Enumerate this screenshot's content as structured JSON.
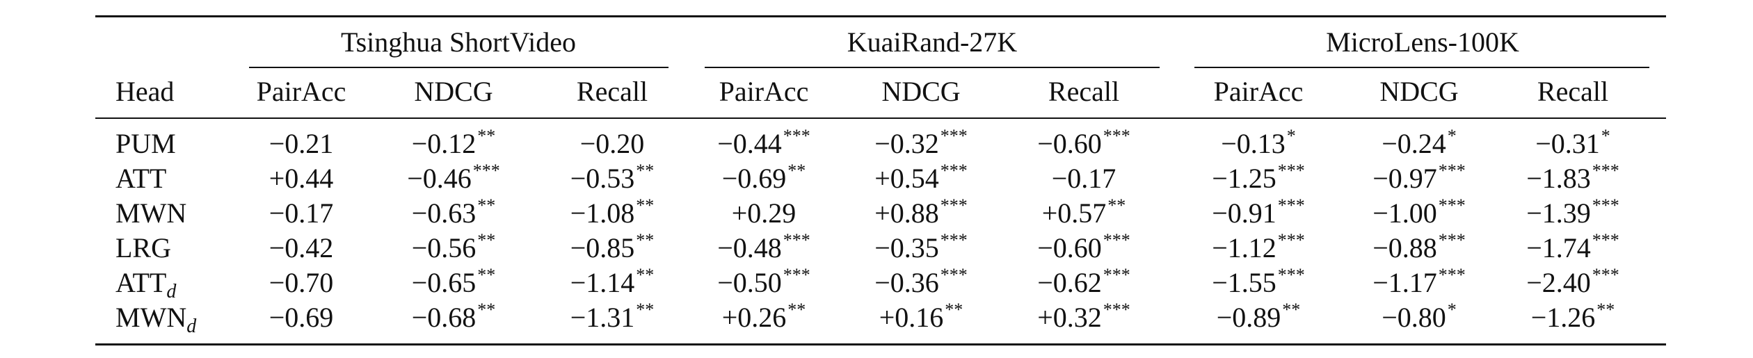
{
  "table": {
    "head_label": "Head",
    "groups": [
      "Tsinghua ShortVideo",
      "KuaiRand-27K",
      "MicroLens-100K"
    ],
    "columns": [
      "PairAcc",
      "NDCG",
      "Recall",
      "PairAcc",
      "NDCG",
      "Recall",
      "PairAcc",
      "NDCG",
      "Recall"
    ],
    "rows": [
      {
        "head": "PUM",
        "cells": [
          "−0.21",
          {
            "text": "−0.12",
            "sup": "**"
          },
          "−0.20",
          {
            "text": "−0.44",
            "sup": "***"
          },
          {
            "text": "−0.32",
            "sup": "***"
          },
          {
            "text": "−0.60",
            "sup": "***"
          },
          {
            "text": "−0.13",
            "sup": "*"
          },
          {
            "text": "−0.24",
            "sup": "*"
          },
          {
            "text": "−0.31",
            "sup": "*"
          }
        ]
      },
      {
        "head": "ATT",
        "cells": [
          "+0.44",
          {
            "text": "−0.46",
            "sup": "***"
          },
          {
            "text": "−0.53",
            "sup": "**"
          },
          {
            "text": "−0.69",
            "sup": "**"
          },
          {
            "text": "+0.54",
            "sup": "***"
          },
          "−0.17",
          {
            "text": "−1.25",
            "sup": "***"
          },
          {
            "text": "−0.97",
            "sup": "***"
          },
          {
            "text": "−1.83",
            "sup": "***"
          }
        ]
      },
      {
        "head": "MWN",
        "cells": [
          "−0.17",
          {
            "text": "−0.63",
            "sup": "**"
          },
          {
            "text": "−1.08",
            "sup": "**"
          },
          "+0.29",
          {
            "text": "+0.88",
            "sup": "***"
          },
          {
            "text": "+0.57",
            "sup": "**"
          },
          {
            "text": "−0.91",
            "sup": "***"
          },
          {
            "text": "−1.00",
            "sup": "***"
          },
          {
            "text": "−1.39",
            "sup": "***"
          }
        ]
      },
      {
        "head": "LRG",
        "cells": [
          "−0.42",
          {
            "text": "−0.56",
            "sup": "**"
          },
          {
            "text": "−0.85",
            "sup": "**"
          },
          {
            "text": "−0.48",
            "sup": "***"
          },
          {
            "text": "−0.35",
            "sup": "***"
          },
          {
            "text": "−0.60",
            "sup": "***"
          },
          {
            "text": "−1.12",
            "sup": "***"
          },
          {
            "text": "−0.88",
            "sup": "***"
          },
          {
            "text": "−1.74",
            "sup": "***"
          }
        ]
      },
      {
        "head": {
          "text": "ATT",
          "sub": "d"
        },
        "cells": [
          "−0.70",
          {
            "text": "−0.65",
            "sup": "**"
          },
          {
            "text": "−1.14",
            "sup": "**"
          },
          {
            "text": "−0.50",
            "sup": "***"
          },
          {
            "text": "−0.36",
            "sup": "***"
          },
          {
            "text": "−0.62",
            "sup": "***"
          },
          {
            "text": "−1.55",
            "sup": "***"
          },
          {
            "text": "−1.17",
            "sup": "***"
          },
          {
            "text": "−2.40",
            "sup": "***"
          }
        ]
      },
      {
        "head": {
          "text": "MWN",
          "sub": "d"
        },
        "cells": [
          "−0.69",
          {
            "text": "−0.68",
            "sup": "**"
          },
          {
            "text": "−1.31",
            "sup": "**"
          },
          {
            "text": "+0.26",
            "sup": "**"
          },
          {
            "text": "+0.16",
            "sup": "**"
          },
          {
            "text": "+0.32",
            "sup": "***"
          },
          {
            "text": "−0.89",
            "sup": "**"
          },
          {
            "text": "−0.80",
            "sup": "*"
          },
          {
            "text": "−1.26",
            "sup": "**"
          }
        ]
      }
    ]
  }
}
